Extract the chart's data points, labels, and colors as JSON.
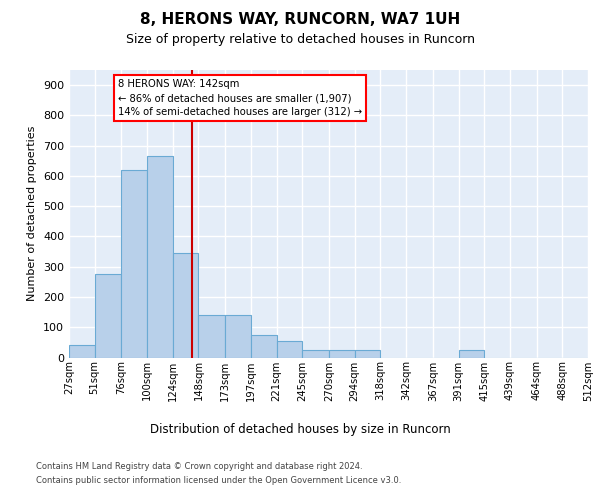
{
  "title": "8, HERONS WAY, RUNCORN, WA7 1UH",
  "subtitle": "Size of property relative to detached houses in Runcorn",
  "xlabel": "Distribution of detached houses by size in Runcorn",
  "ylabel": "Number of detached properties",
  "footnote1": "Contains HM Land Registry data © Crown copyright and database right 2024.",
  "footnote2": "Contains public sector information licensed under the Open Government Licence v3.0.",
  "bar_color": "#b8d0ea",
  "bar_edge_color": "#6aaad4",
  "background_color": "#e4edf8",
  "grid_color": "#ffffff",
  "vline_color": "#cc0000",
  "vline_value": 142,
  "annotation_text": "8 HERONS WAY: 142sqm\n← 86% of detached houses are smaller (1,907)\n14% of semi-detached houses are larger (312) →",
  "bin_edges": [
    27,
    51,
    76,
    100,
    124,
    148,
    173,
    197,
    221,
    245,
    270,
    294,
    318,
    342,
    367,
    391,
    415,
    439,
    464,
    488,
    512
  ],
  "bin_heights": [
    40,
    275,
    620,
    665,
    345,
    140,
    140,
    75,
    55,
    25,
    25,
    25,
    0,
    0,
    0,
    25,
    0,
    0,
    0,
    0
  ],
  "ylim": [
    0,
    950
  ],
  "yticks": [
    0,
    100,
    200,
    300,
    400,
    500,
    600,
    700,
    800,
    900
  ]
}
